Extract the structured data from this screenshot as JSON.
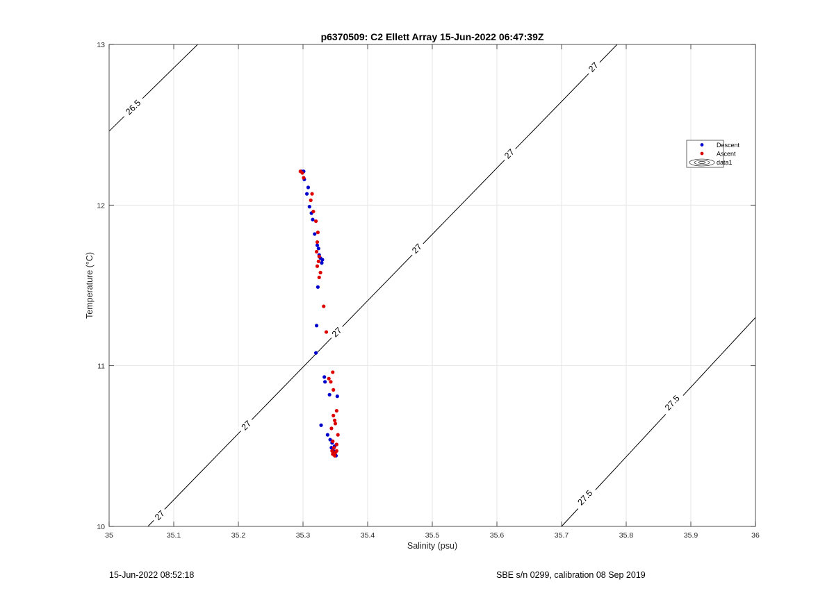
{
  "chart_data": {
    "type": "scatter",
    "title": "p6370509: C2 Ellett Array 15-Jun-2022 06:47:39Z",
    "xlabel": "Salinity (psu)",
    "ylabel": "Temperature (°C)",
    "xlim": [
      35,
      36
    ],
    "ylim": [
      10,
      13
    ],
    "xticks": [
      35,
      35.1,
      35.2,
      35.3,
      35.4,
      35.5,
      35.6,
      35.7,
      35.8,
      35.9,
      36
    ],
    "xtick_labels": [
      "35",
      "35.1",
      "35.2",
      "35.3",
      "35.4",
      "35.5",
      "35.6",
      "35.7",
      "35.8",
      "35.9",
      "36"
    ],
    "yticks": [
      10,
      11,
      12,
      13
    ],
    "ytick_labels": [
      "10",
      "11",
      "12",
      "13"
    ],
    "grid": true,
    "legend_position": "right",
    "series": [
      {
        "name": "Descent",
        "color": "#0000cc",
        "points": [
          [
            35.298,
            12.21
          ],
          [
            35.301,
            12.21
          ],
          [
            35.302,
            12.16
          ],
          [
            35.306,
            12.07
          ],
          [
            35.308,
            12.11
          ],
          [
            35.31,
            11.99
          ],
          [
            35.313,
            11.95
          ],
          [
            35.315,
            11.91
          ],
          [
            35.318,
            11.82
          ],
          [
            35.322,
            11.75
          ],
          [
            35.324,
            11.73
          ],
          [
            35.325,
            11.69
          ],
          [
            35.327,
            11.67
          ],
          [
            35.329,
            11.64
          ],
          [
            35.33,
            11.66
          ],
          [
            35.323,
            11.49
          ],
          [
            35.321,
            11.25
          ],
          [
            35.32,
            11.08
          ],
          [
            35.333,
            10.93
          ],
          [
            35.334,
            10.9
          ],
          [
            35.341,
            10.82
          ],
          [
            35.353,
            10.81
          ],
          [
            35.328,
            10.63
          ],
          [
            35.338,
            10.57
          ],
          [
            35.342,
            10.54
          ],
          [
            35.345,
            10.52
          ],
          [
            35.349,
            10.5
          ],
          [
            35.344,
            10.49
          ],
          [
            35.347,
            10.47
          ],
          [
            35.35,
            10.46
          ],
          [
            35.348,
            10.45
          ],
          [
            35.351,
            10.44
          ]
        ]
      },
      {
        "name": "Ascent",
        "color": "#dd0000",
        "points": [
          [
            35.296,
            12.21
          ],
          [
            35.299,
            12.2
          ],
          [
            35.301,
            12.17
          ],
          [
            35.314,
            12.07
          ],
          [
            35.312,
            12.03
          ],
          [
            35.316,
            11.96
          ],
          [
            35.32,
            11.9
          ],
          [
            35.323,
            11.83
          ],
          [
            35.322,
            11.77
          ],
          [
            35.321,
            11.71
          ],
          [
            35.325,
            11.68
          ],
          [
            35.324,
            11.65
          ],
          [
            35.322,
            11.62
          ],
          [
            35.327,
            11.58
          ],
          [
            35.325,
            11.55
          ],
          [
            35.332,
            11.37
          ],
          [
            35.336,
            11.21
          ],
          [
            35.346,
            10.96
          ],
          [
            35.34,
            10.92
          ],
          [
            35.343,
            10.9
          ],
          [
            35.347,
            10.85
          ],
          [
            35.352,
            10.72
          ],
          [
            35.347,
            10.69
          ],
          [
            35.349,
            10.66
          ],
          [
            35.35,
            10.64
          ],
          [
            35.344,
            10.61
          ],
          [
            35.354,
            10.57
          ],
          [
            35.346,
            10.53
          ],
          [
            35.352,
            10.51
          ],
          [
            35.348,
            10.49
          ],
          [
            35.345,
            10.47
          ],
          [
            35.35,
            10.46
          ],
          [
            35.352,
            10.47
          ],
          [
            35.346,
            10.45
          ],
          [
            35.349,
            10.44
          ]
        ]
      }
    ],
    "contours": [
      {
        "label": "26.5",
        "points": [
          [
            35.0,
            12.46
          ],
          [
            35.137,
            13.0
          ]
        ],
        "labels_at": [
          [
            35.037,
            12.61
          ]
        ]
      },
      {
        "label": "27",
        "points": [
          [
            35.06,
            10.0
          ],
          [
            35.786,
            13.0
          ]
        ],
        "labels_at": [
          [
            35.078,
            10.07
          ],
          [
            35.212,
            10.63
          ],
          [
            35.352,
            11.21
          ],
          [
            35.476,
            11.73
          ],
          [
            35.619,
            12.32
          ],
          [
            35.749,
            12.86
          ]
        ]
      },
      {
        "label": "27.5",
        "points": [
          [
            35.7,
            10.0
          ],
          [
            36.0,
            11.3
          ]
        ],
        "labels_at": [
          [
            35.736,
            10.18
          ],
          [
            35.871,
            10.77
          ]
        ]
      }
    ],
    "legend_entries": [
      "Descent",
      "Ascent",
      "data1"
    ]
  },
  "footer": {
    "timestamp": "15-Jun-2022 08:52:18",
    "calibration": "SBE s/n 0299, calibration 08 Sep 2019"
  }
}
